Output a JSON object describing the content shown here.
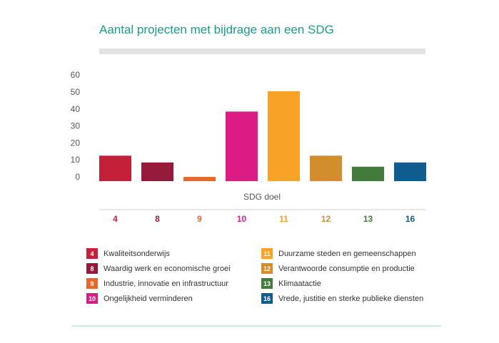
{
  "chart_data": {
    "type": "bar",
    "title": "Aantal projecten met bijdrage aan een SDG",
    "xlabel": "SDG doel",
    "ylabel": "",
    "ylim": [
      0,
      60
    ],
    "yticks": [
      0,
      10,
      20,
      30,
      40,
      50,
      60
    ],
    "categories": [
      "4",
      "8",
      "9",
      "10",
      "11",
      "12",
      "13",
      "16"
    ],
    "values": [
      15,
      11,
      2.5,
      41,
      53,
      15,
      8.5,
      11
    ],
    "colors": [
      "#c4203a",
      "#961a3c",
      "#e8672a",
      "#dc1b84",
      "#f9a228",
      "#d08f2c",
      "#427b3b",
      "#0f5d8e"
    ],
    "legend": [
      {
        "num": "4",
        "label": "Kwaliteitsonderwijs",
        "color": "#c4203a"
      },
      {
        "num": "8",
        "label": "Waardig werk en economische groei",
        "color": "#961a3c"
      },
      {
        "num": "9",
        "label": "Industrie, innovatie en infrastructuur",
        "color": "#e8672a"
      },
      {
        "num": "10",
        "label": "Ongelijkheid verminderen",
        "color": "#dc1b84"
      },
      {
        "num": "11",
        "label": "Duurzame steden en gemeenschappen",
        "color": "#f9a228"
      },
      {
        "num": "12",
        "label": "Verantwoorde consumptie en productie",
        "color": "#d08f2c"
      },
      {
        "num": "13",
        "label": "Klimaatactie",
        "color": "#427b3b"
      },
      {
        "num": "16",
        "label": "Vrede, justitie en sterke publieke diensten",
        "color": "#0f5d8e"
      }
    ],
    "grid": false,
    "legend_placement": "bottom"
  }
}
